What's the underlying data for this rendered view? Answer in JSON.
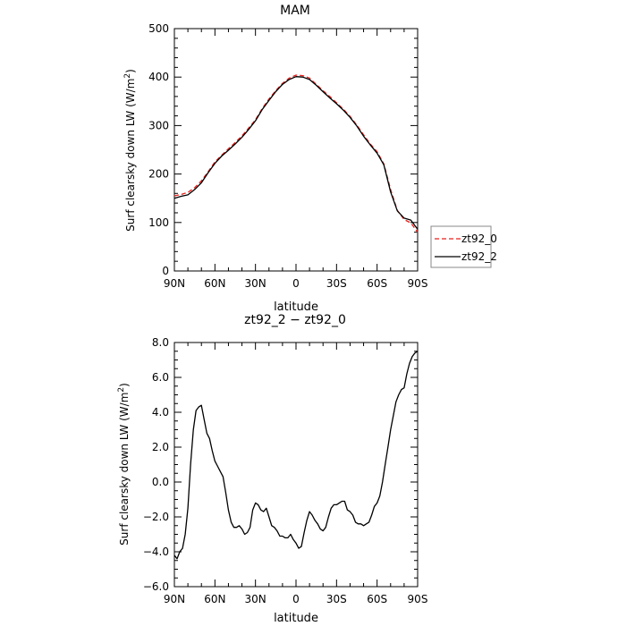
{
  "chart_data": [
    {
      "type": "line",
      "title": "MAM",
      "xlabel": "latitude",
      "ylabel": "Surf clearsky down LW (W/m²)",
      "ylabel_main": "Surf clearsky down LW (W/m",
      "ylabel_sup": "2",
      "ylabel_tail": ")",
      "xlim": [
        90,
        -90
      ],
      "ylim": [
        0,
        500
      ],
      "x_ticks": [
        {
          "value": 90,
          "label": "90N"
        },
        {
          "value": 60,
          "label": "60N"
        },
        {
          "value": 30,
          "label": "30N"
        },
        {
          "value": 0,
          "label": "0"
        },
        {
          "value": -30,
          "label": "30S"
        },
        {
          "value": -60,
          "label": "60S"
        },
        {
          "value": -90,
          "label": "90S"
        }
      ],
      "y_ticks": [
        {
          "value": 0,
          "label": "0"
        },
        {
          "value": 100,
          "label": "100"
        },
        {
          "value": 200,
          "label": "200"
        },
        {
          "value": 300,
          "label": "300"
        },
        {
          "value": 400,
          "label": "400"
        },
        {
          "value": 500,
          "label": "500"
        }
      ],
      "legend_position": "right, outside",
      "series": [
        {
          "name": "zt92_0",
          "color": "#e8201c",
          "dash": "dashed",
          "x": [
            90,
            85,
            80,
            75,
            70,
            65,
            60,
            55,
            50,
            45,
            40,
            35,
            30,
            25,
            20,
            15,
            10,
            5,
            0,
            -5,
            -10,
            -15,
            -20,
            -25,
            -30,
            -35,
            -40,
            -45,
            -50,
            -55,
            -60,
            -65,
            -70,
            -75,
            -80,
            -85,
            -90
          ],
          "y": [
            155,
            158,
            162,
            172,
            186,
            205,
            225,
            239,
            252,
            265,
            279,
            295,
            312,
            335,
            355,
            372,
            387,
            398,
            404,
            403,
            398,
            385,
            372,
            360,
            347,
            334,
            319,
            301,
            281,
            262,
            246,
            221,
            168,
            125,
            106,
            99,
            80
          ]
        },
        {
          "name": "zt92_2",
          "color": "#000000",
          "dash": "solid",
          "x": [
            90,
            85,
            80,
            75,
            70,
            65,
            60,
            55,
            50,
            45,
            40,
            35,
            30,
            25,
            20,
            15,
            10,
            5,
            0,
            -5,
            -10,
            -15,
            -20,
            -25,
            -30,
            -35,
            -40,
            -45,
            -50,
            -55,
            -60,
            -65,
            -70,
            -75,
            -80,
            -85,
            -90
          ],
          "y": [
            150,
            154,
            157,
            168,
            182,
            203,
            222,
            237,
            249,
            262,
            276,
            292,
            310,
            333,
            352,
            370,
            385,
            395,
            401,
            400,
            395,
            383,
            370,
            357,
            345,
            332,
            317,
            299,
            278,
            260,
            243,
            219,
            163,
            124,
            109,
            105,
            86
          ]
        }
      ]
    },
    {
      "type": "line",
      "title": "zt92_2 − zt92_0",
      "xlabel": "latitude",
      "ylabel": "Surf clearsky down LW (W/m²)",
      "ylabel_main": "Surf clearsky down LW (W/m",
      "ylabel_sup": "2",
      "ylabel_tail": ")",
      "xlim": [
        90,
        -90
      ],
      "ylim": [
        -6,
        8
      ],
      "x_ticks": [
        {
          "value": 90,
          "label": "90N"
        },
        {
          "value": 60,
          "label": "60N"
        },
        {
          "value": 30,
          "label": "30N"
        },
        {
          "value": 0,
          "label": "0"
        },
        {
          "value": -30,
          "label": "30S"
        },
        {
          "value": -60,
          "label": "60S"
        },
        {
          "value": -90,
          "label": "90S"
        }
      ],
      "y_ticks": [
        {
          "value": -6,
          "label": "−6.0"
        },
        {
          "value": -4,
          "label": "−4.0"
        },
        {
          "value": -2,
          "label": "−2.0"
        },
        {
          "value": 0,
          "label": "0.0"
        },
        {
          "value": 2,
          "label": "2.0"
        },
        {
          "value": 4,
          "label": "4.0"
        },
        {
          "value": 6,
          "label": "6.0"
        },
        {
          "value": 8,
          "label": "8.0"
        }
      ],
      "series": [
        {
          "color": "#000000",
          "dash": "solid",
          "x": [
            90,
            88,
            86,
            84,
            82,
            80,
            78,
            76,
            74,
            72,
            70,
            68,
            66,
            64,
            62,
            60,
            58,
            56,
            54,
            52,
            50,
            48,
            46,
            44,
            42,
            40,
            38,
            36,
            34,
            32,
            30,
            28,
            26,
            24,
            22,
            20,
            18,
            16,
            14,
            12,
            10,
            8,
            6,
            4,
            2,
            0,
            -2,
            -4,
            -6,
            -8,
            -10,
            -12,
            -14,
            -16,
            -18,
            -20,
            -22,
            -24,
            -26,
            -28,
            -30,
            -32,
            -34,
            -36,
            -38,
            -40,
            -42,
            -44,
            -46,
            -48,
            -50,
            -52,
            -54,
            -56,
            -58,
            -60,
            -62,
            -64,
            -66,
            -68,
            -70,
            -72,
            -74,
            -76,
            -78,
            -80,
            -82,
            -84,
            -86,
            -88,
            -90
          ],
          "y": [
            -4.2,
            -4.4,
            -4.0,
            -3.8,
            -3.0,
            -1.5,
            1.0,
            3.0,
            4.1,
            4.3,
            4.4,
            3.6,
            2.8,
            2.5,
            1.8,
            1.2,
            0.9,
            0.6,
            0.3,
            -0.6,
            -1.6,
            -2.3,
            -2.6,
            -2.6,
            -2.5,
            -2.7,
            -3.0,
            -2.9,
            -2.6,
            -1.6,
            -1.2,
            -1.3,
            -1.6,
            -1.7,
            -1.5,
            -2.0,
            -2.5,
            -2.6,
            -2.8,
            -3.1,
            -3.1,
            -3.2,
            -3.2,
            -3.0,
            -3.3,
            -3.5,
            -3.8,
            -3.7,
            -2.9,
            -2.2,
            -1.7,
            -1.9,
            -2.2,
            -2.4,
            -2.7,
            -2.8,
            -2.6,
            -2.0,
            -1.5,
            -1.3,
            -1.3,
            -1.2,
            -1.1,
            -1.1,
            -1.6,
            -1.7,
            -1.9,
            -2.3,
            -2.4,
            -2.4,
            -2.5,
            -2.4,
            -2.3,
            -1.9,
            -1.4,
            -1.2,
            -0.8,
            0.0,
            1.0,
            2.0,
            3.0,
            3.8,
            4.6,
            5.0,
            5.3,
            5.4,
            6.2,
            6.8,
            7.2,
            7.4,
            7.5
          ]
        }
      ]
    }
  ]
}
